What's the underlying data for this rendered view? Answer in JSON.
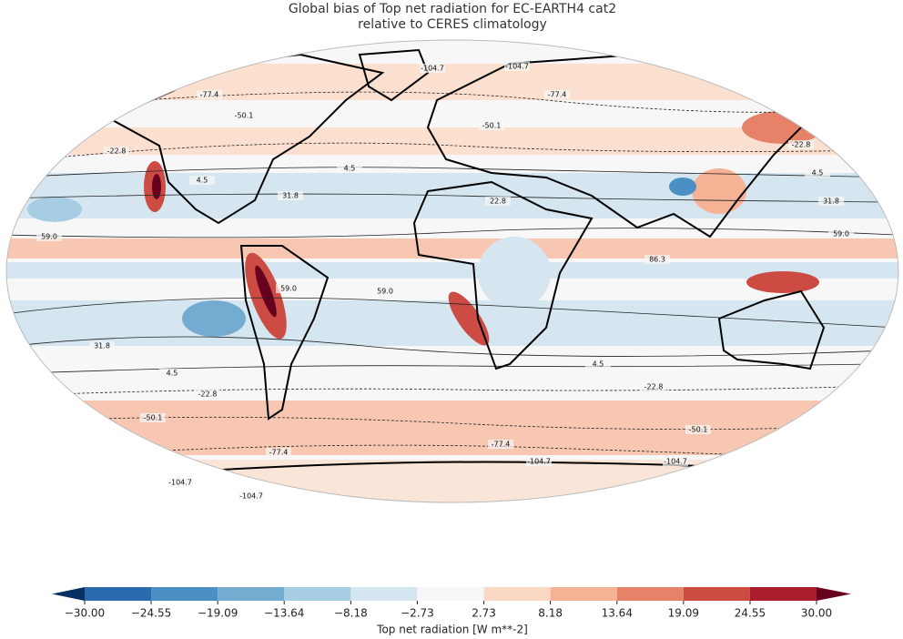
{
  "title": [
    "Global bias of Top net radiation for EC-EARTH4 cat2",
    "relative to CERES climatology"
  ],
  "colorbar": {
    "label": "Top net radiation [W m**-2]",
    "ticks": [
      {
        "value": -30,
        "label": "−30.00"
      },
      {
        "value": -24.55,
        "label": "−24.55"
      },
      {
        "value": -19.09,
        "label": "−19.09"
      },
      {
        "value": -13.64,
        "label": "−13.64"
      },
      {
        "value": -8.18,
        "label": "−8.18"
      },
      {
        "value": -2.73,
        "label": "−2.73"
      },
      {
        "value": 2.73,
        "label": "2.73"
      },
      {
        "value": 8.18,
        "label": "8.18"
      },
      {
        "value": 13.64,
        "label": "13.64"
      },
      {
        "value": 19.09,
        "label": "19.09"
      },
      {
        "value": 24.55,
        "label": "24.55"
      },
      {
        "value": 30,
        "label": "30.00"
      }
    ],
    "colors": [
      "#053061",
      "#2a6bb0",
      "#4a90c4",
      "#74acd1",
      "#a7cde3",
      "#d5e6f0",
      "#f7f7f7",
      "#fbd8c4",
      "#f6b294",
      "#e58267",
      "#cc4c44",
      "#ab1d2c",
      "#67001f"
    ]
  },
  "contour_labels": [
    "-104.7",
    "-104.7",
    "-77.4",
    "-77.4",
    "-50.1",
    "-50.1",
    "-22.8",
    "-22.8",
    "4.5",
    "4.5",
    "4.5",
    "31.8",
    "31.8",
    "22.8",
    "59.0",
    "59.0",
    "86.3",
    "59.0",
    "59.0",
    "31.8",
    "4.5",
    "4.5",
    "-22.8",
    "-22.8",
    "-50.1",
    "-50.1",
    "-77.4",
    "-77.4",
    "-104.7",
    "-104.7",
    "-104.7",
    "-104.7"
  ]
}
